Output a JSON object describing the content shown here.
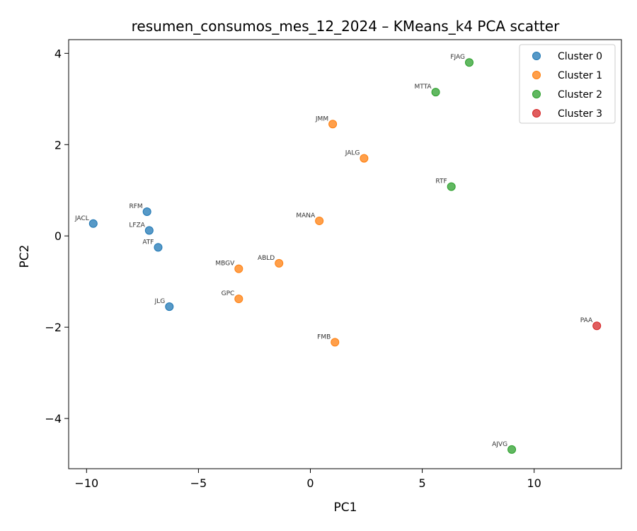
{
  "chart_data": {
    "type": "scatter",
    "title": "resumen_consumos_mes_12_2024 – KMeans_k4 PCA scatter",
    "xlabel": "PC1",
    "ylabel": "PC2",
    "xlim": [
      -10.8,
      13.9
    ],
    "ylim": [
      -5.1,
      4.3
    ],
    "xticks": [
      -10,
      -5,
      0,
      5,
      10
    ],
    "xtick_labels": [
      "−10",
      "−5",
      "0",
      "5",
      "10"
    ],
    "yticks": [
      -4,
      -2,
      0,
      2,
      4
    ],
    "ytick_labels": [
      "−4",
      "−2",
      "0",
      "2",
      "4"
    ],
    "grid": false,
    "legend_position": "top-right",
    "series": [
      {
        "name": "Cluster 0",
        "color": "#1f77b4",
        "points": [
          {
            "label": "JACL",
            "x": -9.7,
            "y": 0.27
          },
          {
            "label": "RFM",
            "x": -7.3,
            "y": 0.53
          },
          {
            "label": "LFZA",
            "x": -7.2,
            "y": 0.12
          },
          {
            "label": "ATF",
            "x": -6.8,
            "y": -0.25
          },
          {
            "label": "JLG",
            "x": -6.3,
            "y": -1.55
          }
        ]
      },
      {
        "name": "Cluster 1",
        "color": "#ff7f0e",
        "points": [
          {
            "label": "JMM",
            "x": 1.0,
            "y": 2.45
          },
          {
            "label": "JALG",
            "x": 2.4,
            "y": 1.7
          },
          {
            "label": "MANA",
            "x": 0.4,
            "y": 0.33
          },
          {
            "label": "ABLD",
            "x": -1.4,
            "y": -0.6
          },
          {
            "label": "MBGV",
            "x": -3.2,
            "y": -0.72
          },
          {
            "label": "GPC",
            "x": -3.2,
            "y": -1.38
          },
          {
            "label": "FMB",
            "x": 1.1,
            "y": -2.33
          }
        ]
      },
      {
        "name": "Cluster 2",
        "color": "#2ca02c",
        "points": [
          {
            "label": "FJAG",
            "x": 7.1,
            "y": 3.8
          },
          {
            "label": "MTTA",
            "x": 5.6,
            "y": 3.15
          },
          {
            "label": "RTF",
            "x": 6.3,
            "y": 1.08
          },
          {
            "label": "AJVG",
            "x": 9.0,
            "y": -4.68
          }
        ]
      },
      {
        "name": "Cluster 3",
        "color": "#d62728",
        "points": [
          {
            "label": "PAA",
            "x": 12.8,
            "y": -1.97
          }
        ]
      }
    ]
  }
}
